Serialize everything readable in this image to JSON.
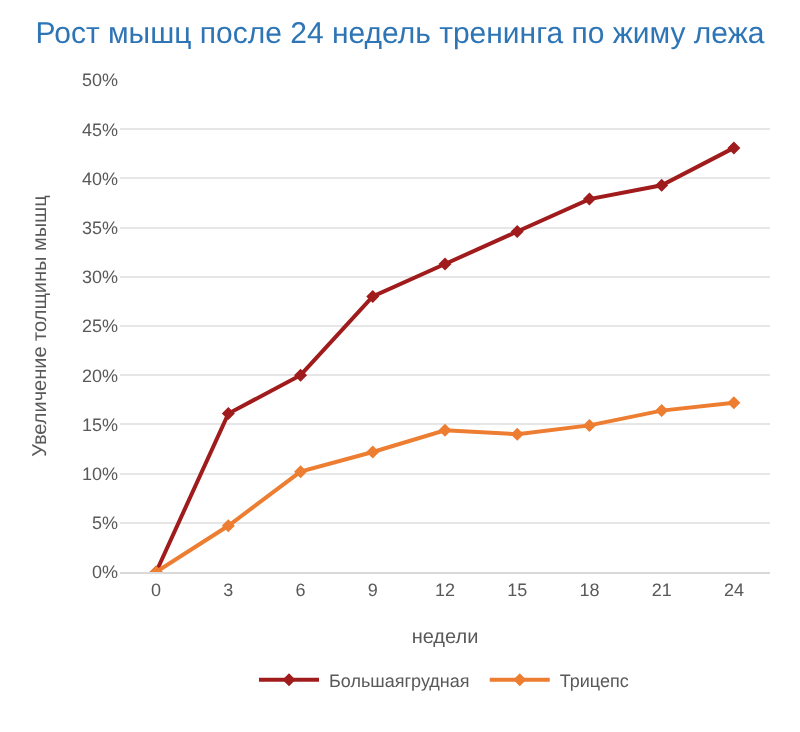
{
  "chart_data": {
    "type": "line",
    "title": "Рост мышц после 24 недель тренинга по жиму лежа",
    "xlabel": "недели",
    "ylabel": "Увеличение толщины мышц",
    "categories": [
      "0",
      "3",
      "6",
      "9",
      "12",
      "15",
      "18",
      "21",
      "24"
    ],
    "series": [
      {
        "name": "Большаягрудная",
        "color": "#a01c1c",
        "values": [
          0,
          16.1,
          20.0,
          28.0,
          31.3,
          34.6,
          37.9,
          39.3,
          43.1
        ]
      },
      {
        "name": "Трицепс",
        "color": "#ed7d31",
        "values": [
          0,
          4.7,
          10.2,
          12.2,
          14.4,
          14.0,
          14.9,
          16.4,
          17.2
        ]
      }
    ],
    "ylim": [
      0,
      50
    ],
    "yticks": [
      {
        "value": 0,
        "label": "0%"
      },
      {
        "value": 5,
        "label": "5%"
      },
      {
        "value": 10,
        "label": "10%"
      },
      {
        "value": 15,
        "label": "15%"
      },
      {
        "value": 20,
        "label": "20%"
      },
      {
        "value": 25,
        "label": "25%"
      },
      {
        "value": 30,
        "label": "30%"
      },
      {
        "value": 35,
        "label": "35%"
      },
      {
        "value": 40,
        "label": "40%"
      },
      {
        "value": 45,
        "label": "45%"
      },
      {
        "value": 50,
        "label": "50%"
      }
    ],
    "grid": "y",
    "legend": "bottom",
    "marker": "diamond",
    "line_style": "solid"
  }
}
